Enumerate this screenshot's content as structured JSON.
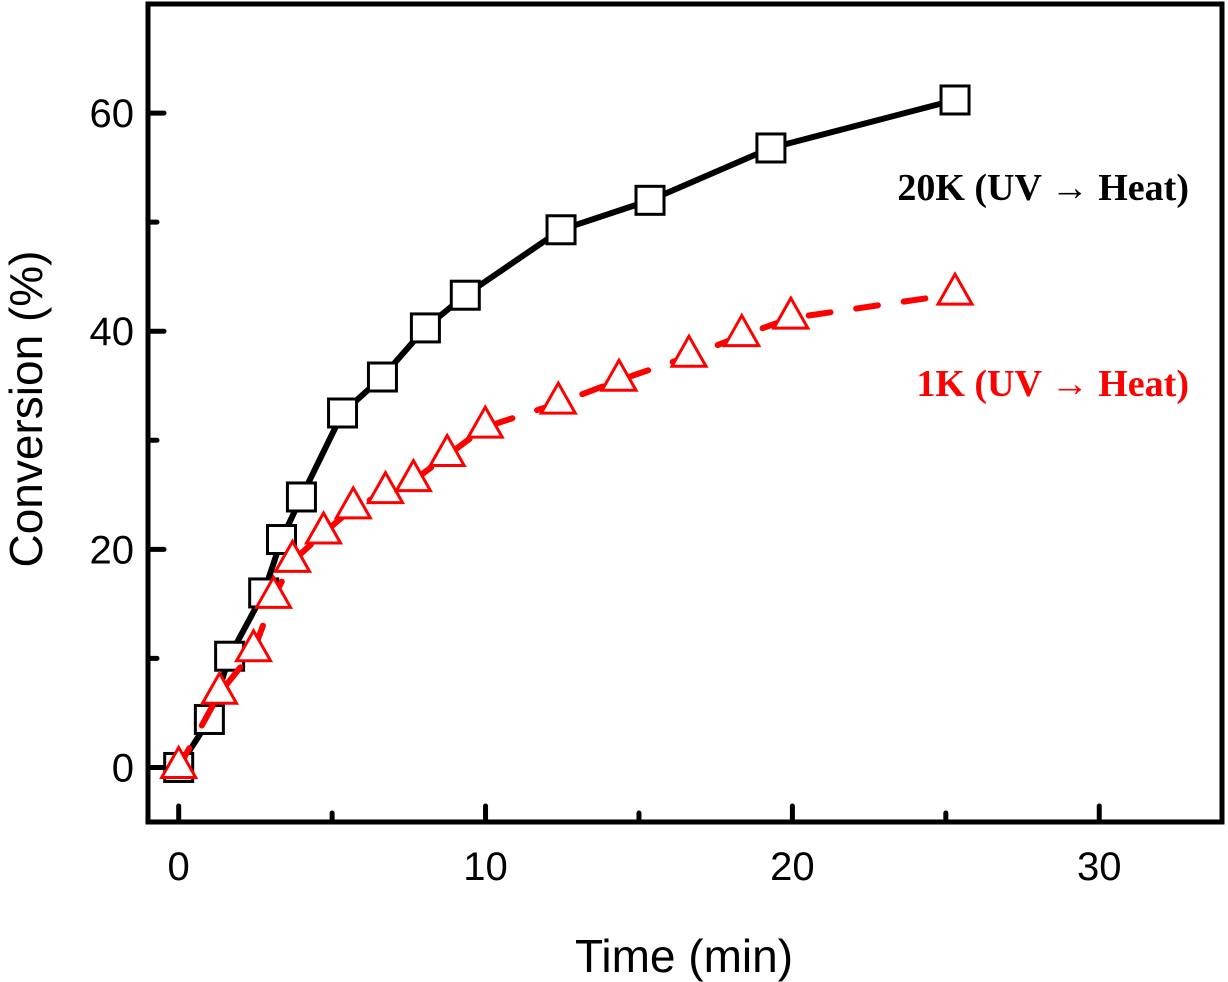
{
  "chart_data": {
    "type": "line",
    "title": "",
    "xlabel": "Time (min)",
    "ylabel": "Conversion (%)",
    "xlim": [
      -1,
      34
    ],
    "ylim": [
      -5,
      70
    ],
    "xticks": [
      0,
      10,
      20,
      30
    ],
    "xticks_minor": [
      5,
      15,
      25
    ],
    "yticks": [
      0,
      20,
      40,
      60
    ],
    "yticks_minor": [
      10,
      30,
      50
    ],
    "grid": false,
    "legend": "none",
    "series": [
      {
        "name": "20K (UV → Heat)",
        "color": "#000000",
        "marker": "open-square",
        "line_style": "solid",
        "x": [
          0,
          1.0,
          1.66,
          2.77,
          3.35,
          4.0,
          5.34,
          6.64,
          8.04,
          9.34,
          12.46,
          15.36,
          19.3,
          25.3
        ],
        "y": [
          0,
          4.4,
          10.2,
          16.0,
          20.9,
          24.8,
          32.5,
          35.8,
          40.3,
          43.3,
          49.3,
          52.0,
          56.8,
          61.2
        ]
      },
      {
        "name": "1K (UV → Heat)",
        "color": "#ff0000",
        "marker": "open-triangle",
        "line_style": "dashed",
        "x": [
          0,
          1.33,
          2.44,
          3.09,
          3.71,
          4.72,
          5.69,
          6.74,
          7.65,
          8.75,
          9.99,
          12.37,
          14.35,
          16.63,
          18.35,
          19.95,
          25.3
        ],
        "y": [
          0,
          6.8,
          10.7,
          15.6,
          18.9,
          21.5,
          23.8,
          25.2,
          26.3,
          28.6,
          31.2,
          33.4,
          35.5,
          37.7,
          39.6,
          41.2,
          43.4
        ]
      }
    ],
    "annotations": [
      {
        "text": "20K (UV → Heat)",
        "color": "#000000",
        "series": 0
      },
      {
        "text": "1K (UV → Heat)",
        "color": "#ff0000",
        "series": 1
      }
    ]
  }
}
